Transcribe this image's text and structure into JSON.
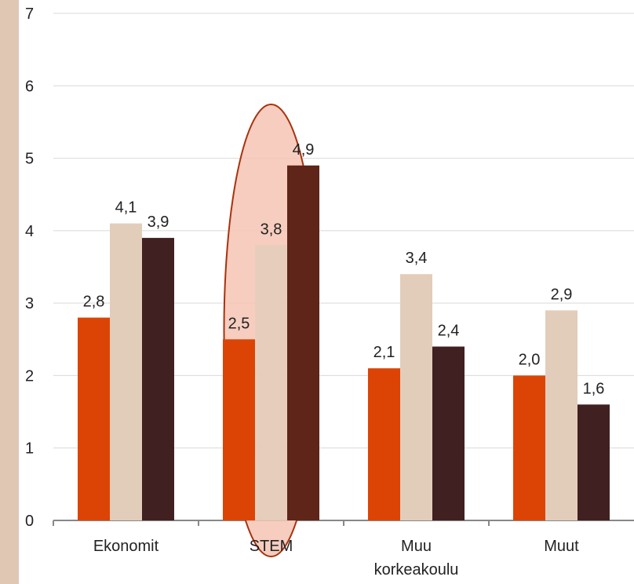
{
  "chart_data": {
    "type": "bar",
    "title": "",
    "xlabel": "",
    "ylabel": "",
    "ylim": [
      0,
      7
    ],
    "yticks": [
      "0",
      "1",
      "2",
      "3",
      "4",
      "5",
      "6",
      "7"
    ],
    "grid": true,
    "categories": [
      [
        "Ekonomit"
      ],
      [
        "STEM"
      ],
      [
        "Muu",
        "korkeakoulu"
      ],
      [
        "Muut"
      ]
    ],
    "series": [
      {
        "color": "#dc4405",
        "values": [
          2.8,
          2.5,
          2.1,
          2.0
        ],
        "labels": [
          "2,8",
          "2,5",
          "2,1",
          "2,0"
        ]
      },
      {
        "color": "#e2cdbb",
        "values": [
          4.1,
          3.8,
          3.4,
          2.9
        ],
        "labels": [
          "4,1",
          "3,8",
          "3,4",
          "2,9"
        ]
      },
      {
        "color": "#402020",
        "values": [
          3.9,
          4.9,
          2.4,
          1.6
        ],
        "labels": [
          "3,9",
          "4,9",
          "2,4",
          "1,6"
        ]
      }
    ],
    "highlight": {
      "category_index": 1,
      "fill": "#f4c4b4",
      "stroke": "#a8320e"
    },
    "colors": {
      "background_strip": "#dfc7b4",
      "gridline": "#d9d9d9",
      "axis": "#888888",
      "highlighted_bar": "#5e2518"
    }
  }
}
